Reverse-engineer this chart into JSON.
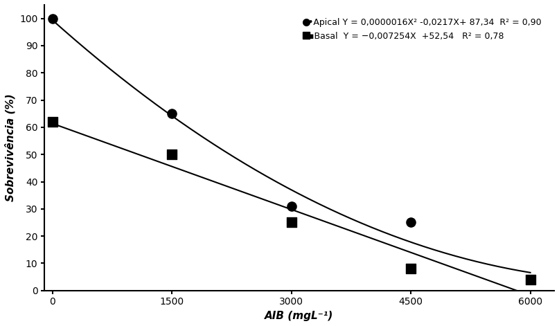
{
  "apical_x": [
    0,
    1500,
    3000,
    4500,
    6000
  ],
  "apical_y": [
    100,
    65,
    31,
    25,
    4
  ],
  "basal_x": [
    0,
    1500,
    3000,
    4500,
    6000
  ],
  "basal_y": [
    62,
    50,
    25,
    8,
    4
  ],
  "apical_label": "•Apical Y = 0,0000016X² -0,0217X+ 87,34  R² = 0,90",
  "basal_label": "▪Basal  Y = −0,007254X  +52,54   R² = 0,78",
  "xlabel": "AIB (mgL⁻¹)",
  "ylabel": "Sobrevivência (%)",
  "xlim": [
    -100,
    6300
  ],
  "ylim": [
    0,
    105
  ],
  "yticks": [
    0,
    10,
    20,
    30,
    40,
    50,
    60,
    70,
    80,
    90,
    100
  ],
  "xticks": [
    0,
    1500,
    3000,
    4500,
    6000
  ],
  "color": "#000000",
  "background": "#ffffff",
  "figsize": [
    8.07,
    4.71
  ],
  "dpi": 100
}
